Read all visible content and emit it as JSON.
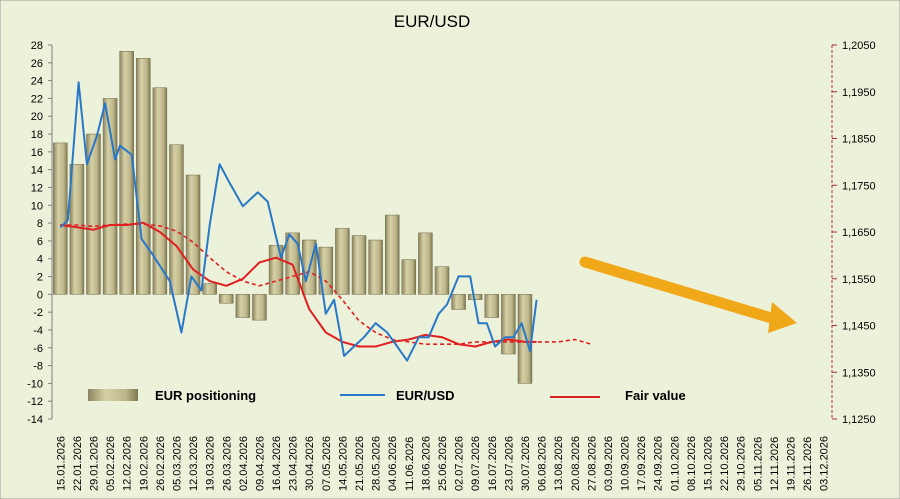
{
  "chart_data": {
    "type": "bar+line",
    "title": "EUR/USD",
    "colors": {
      "background": "#ECF1DA",
      "bar": "#C3BC8C",
      "line": "#2878C8",
      "fair_value": "#E02020",
      "arrow": "#F0A818"
    },
    "y_left": {
      "ticks": [
        "28",
        "26",
        "24",
        "22",
        "20",
        "18",
        "16",
        "14",
        "12",
        "10",
        "8",
        "6",
        "4",
        "2",
        "0",
        "-2",
        "-4",
        "-6",
        "-8",
        "-10",
        "-12",
        "-14"
      ],
      "range": [
        -14,
        28
      ]
    },
    "y_right": {
      "ticks": [
        "1,2050",
        "1,1950",
        "1,1850",
        "1,1750",
        "1,1650",
        "1,1550",
        "1,1450",
        "1,1350",
        "1,1250"
      ],
      "range": [
        1.125,
        1.205
      ]
    },
    "x_dates": [
      "15.01.2026",
      "22.01.2026",
      "29.01.2026",
      "05.02.2026",
      "12.02.2026",
      "19.02.2026",
      "26.02.2026",
      "05.03.2026",
      "12.03.2026",
      "19.03.2026",
      "26.03.2026",
      "02.04.2026",
      "09.04.2026",
      "16.04.2026",
      "23.04.2026",
      "30.04.2026",
      "07.05.2026",
      "14.05.2026",
      "21.05.2026",
      "28.05.2026",
      "04.06.2026",
      "11.06.2026",
      "18.06.2026",
      "25.06.2026",
      "02.07.2026",
      "09.07.2026",
      "16.07.2026",
      "23.07.2026",
      "30.07.2026",
      "06.08.2026",
      "13.08.2026",
      "20.08.2026",
      "27.08.2026",
      "03.09.2026",
      "10.09.2026",
      "17.09.2026",
      "24.09.2026",
      "01.10.2026",
      "08.10.2026",
      "15.10.2026",
      "22.10.2026",
      "29.10.2026",
      "05.11.2026",
      "12.11.2026",
      "19.11.2026",
      "26.11.2026",
      "03.12.2026"
    ],
    "series": [
      {
        "name": "EUR positioning",
        "type": "bar",
        "axis": "left",
        "values": [
          17,
          14.6,
          18,
          22,
          27.3,
          26.5,
          23.2,
          16.8,
          13.4,
          1.2,
          -1,
          -2.6,
          -2.9,
          5.5,
          6.9,
          6.1,
          5.3,
          7.4,
          6.6,
          6.1,
          8.9,
          3.9,
          6.9,
          3.1,
          -1.7,
          -0.6,
          -2.6,
          -6.7,
          -10
        ]
      },
      {
        "name": "EUR/USD",
        "type": "line",
        "axis": "right",
        "x": [
          0,
          0.45,
          1.1,
          1.6,
          2.2,
          2.7,
          3.3,
          3.6,
          4.3,
          4.9,
          5.5,
          6.6,
          7.3,
          7.9,
          8.5,
          9.0,
          9.6,
          10.2,
          11.0,
          11.9,
          12.5,
          13.3,
          13.8,
          14.3,
          14.8,
          15.4,
          16.0,
          16.5,
          17.1,
          17.7,
          18.3,
          19.0,
          19.7,
          20.3,
          20.9,
          21.6,
          22.2,
          22.8,
          23.3,
          24.0,
          24.7,
          25.2,
          25.7,
          26.2,
          26.8,
          27.3,
          27.8,
          28.3,
          28.7
        ],
        "values": [
          1.166,
          1.1675,
          1.197,
          1.1795,
          1.1855,
          1.1925,
          1.1805,
          1.1835,
          1.1815,
          1.1635,
          1.1605,
          1.1545,
          1.1435,
          1.1555,
          1.1525,
          1.1665,
          1.1795,
          1.1755,
          1.1705,
          1.1735,
          1.1715,
          1.1595,
          1.1645,
          1.1625,
          1.1545,
          1.1625,
          1.1475,
          1.1505,
          1.1385,
          1.1405,
          1.1425,
          1.1455,
          1.1435,
          1.1405,
          1.1375,
          1.1425,
          1.1425,
          1.1475,
          1.1495,
          1.1555,
          1.1555,
          1.1455,
          1.1455,
          1.1405,
          1.1425,
          1.1425,
          1.1455,
          1.1395,
          1.1505
        ]
      },
      {
        "name": "Fair value",
        "type": "line",
        "axis": "right",
        "x": [
          0,
          1,
          2,
          3,
          4,
          5,
          6,
          7,
          8,
          9,
          10,
          11,
          12,
          13,
          14,
          15,
          16,
          17,
          18,
          19,
          20,
          21,
          22,
          23,
          24,
          25,
          26,
          27,
          28,
          28.7
        ],
        "values": [
          1.1665,
          1.166,
          1.1655,
          1.1665,
          1.1665,
          1.167,
          1.165,
          1.162,
          1.157,
          1.1545,
          1.1535,
          1.155,
          1.1585,
          1.1595,
          1.158,
          1.1485,
          1.1435,
          1.1415,
          1.1405,
          1.1405,
          1.1415,
          1.142,
          1.143,
          1.1425,
          1.141,
          1.1405,
          1.1415,
          1.142,
          1.1415,
          1.1415
        ]
      },
      {
        "name": "Fair value (dashed)",
        "type": "line",
        "axis": "right",
        "x": [
          0,
          1,
          2,
          3,
          4,
          5,
          6,
          7,
          8,
          9,
          10,
          11,
          12,
          13,
          14,
          15,
          16,
          17,
          18,
          19,
          20,
          21,
          22,
          23,
          24,
          25,
          26,
          27,
          28,
          29,
          30,
          31,
          32
        ],
        "values": [
          1.1665,
          1.1665,
          1.1662,
          1.1665,
          1.1667,
          1.1667,
          1.1663,
          1.1652,
          1.1628,
          1.1595,
          1.1565,
          1.1545,
          1.1535,
          1.1545,
          1.1555,
          1.1565,
          1.1545,
          1.1505,
          1.146,
          1.1435,
          1.142,
          1.1415,
          1.141,
          1.141,
          1.141,
          1.1415,
          1.1415,
          1.1415,
          1.1415,
          1.1415,
          1.1415,
          1.142,
          1.141
        ]
      }
    ],
    "legend": [
      "EUR positioning",
      "EUR/USD",
      "Fair value"
    ],
    "legend_position": "bottom-left",
    "grid": false
  }
}
